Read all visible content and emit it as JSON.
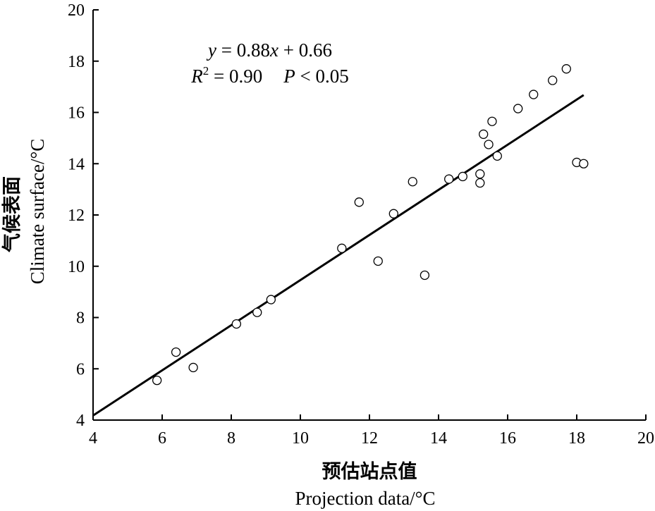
{
  "chart_data": {
    "type": "scatter",
    "xlabel_cn": "预估站点值",
    "xlabel": "Projection data/°C",
    "ylabel_cn": "气候表面",
    "ylabel": "Climate surface/°C",
    "xlim": [
      4,
      20
    ],
    "ylim": [
      4,
      20
    ],
    "xticks": [
      "4",
      "6",
      "8",
      "10",
      "12",
      "14",
      "16",
      "18",
      "20"
    ],
    "yticks": [
      "4",
      "6",
      "8",
      "10",
      "12",
      "14",
      "16",
      "18",
      "20"
    ],
    "grid": false,
    "fit_line": {
      "slope": 0.88,
      "intercept": 0.66,
      "x_range": [
        4,
        18.2
      ]
    },
    "annotations": {
      "equation": {
        "y": "y",
        "eq": " = 0.88",
        "x": "x",
        "rest": " + 0.66"
      },
      "stats": {
        "r": "R",
        "sup": "2",
        "r_val": " = 0.90",
        "p": "P",
        "p_val": " < 0.05"
      }
    },
    "points": [
      {
        "x": 5.85,
        "y": 5.55
      },
      {
        "x": 6.4,
        "y": 6.65
      },
      {
        "x": 6.9,
        "y": 6.05
      },
      {
        "x": 8.15,
        "y": 7.75
      },
      {
        "x": 8.75,
        "y": 8.2
      },
      {
        "x": 9.15,
        "y": 8.7
      },
      {
        "x": 11.2,
        "y": 10.7
      },
      {
        "x": 11.7,
        "y": 12.5
      },
      {
        "x": 12.25,
        "y": 10.2
      },
      {
        "x": 12.7,
        "y": 12.05
      },
      {
        "x": 13.25,
        "y": 13.3
      },
      {
        "x": 13.6,
        "y": 9.65
      },
      {
        "x": 14.3,
        "y": 13.4
      },
      {
        "x": 14.7,
        "y": 13.5
      },
      {
        "x": 15.2,
        "y": 13.6
      },
      {
        "x": 15.2,
        "y": 13.25
      },
      {
        "x": 15.3,
        "y": 15.15
      },
      {
        "x": 15.45,
        "y": 14.75
      },
      {
        "x": 15.55,
        "y": 15.65
      },
      {
        "x": 15.7,
        "y": 14.3
      },
      {
        "x": 16.3,
        "y": 16.15
      },
      {
        "x": 16.75,
        "y": 16.7
      },
      {
        "x": 17.3,
        "y": 17.25
      },
      {
        "x": 17.7,
        "y": 17.7
      },
      {
        "x": 18.0,
        "y": 14.05
      },
      {
        "x": 18.2,
        "y": 14.0
      }
    ]
  }
}
